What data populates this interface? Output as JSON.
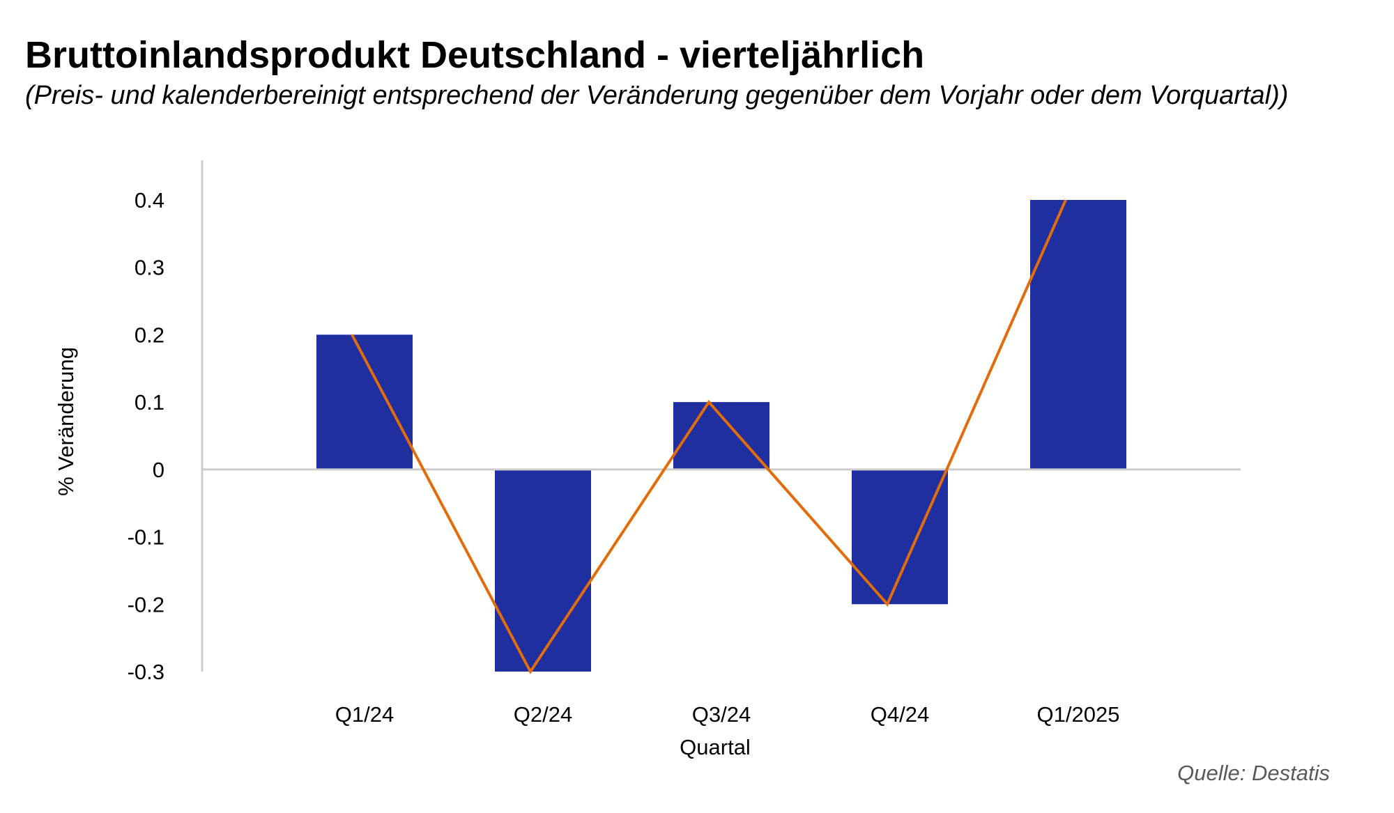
{
  "chart_data": {
    "type": "bar",
    "title": "Bruttoinlandsprodukt Deutschland - vierteljährlich",
    "subtitle": "(Preis- und kalenderbereinigt entsprechend der Veränderung gegenüber dem Vorjahr oder dem Vorquartal))",
    "xlabel": "Quartal",
    "ylabel": "% Veränderung",
    "categories": [
      "Q1/24",
      "Q2/24",
      "Q3/24",
      "Q4/24",
      "Q1/2025"
    ],
    "series": [
      {
        "type": "bar",
        "values": [
          0.2,
          -0.3,
          0.1,
          -0.2,
          0.4
        ],
        "color": "#1f2f9f"
      },
      {
        "type": "line",
        "values": [
          0.2,
          -0.3,
          0.1,
          -0.2,
          0.4
        ],
        "color": "#e36c0a"
      }
    ],
    "ylim": [
      -0.3,
      0.4
    ],
    "yticks": [
      "0.4",
      "0.3",
      "0.2",
      "0.1",
      "0",
      "-0.1",
      "-0.2",
      "-0.3"
    ],
    "grid": false,
    "legend": "none"
  },
  "source": "Quelle: Destatis"
}
